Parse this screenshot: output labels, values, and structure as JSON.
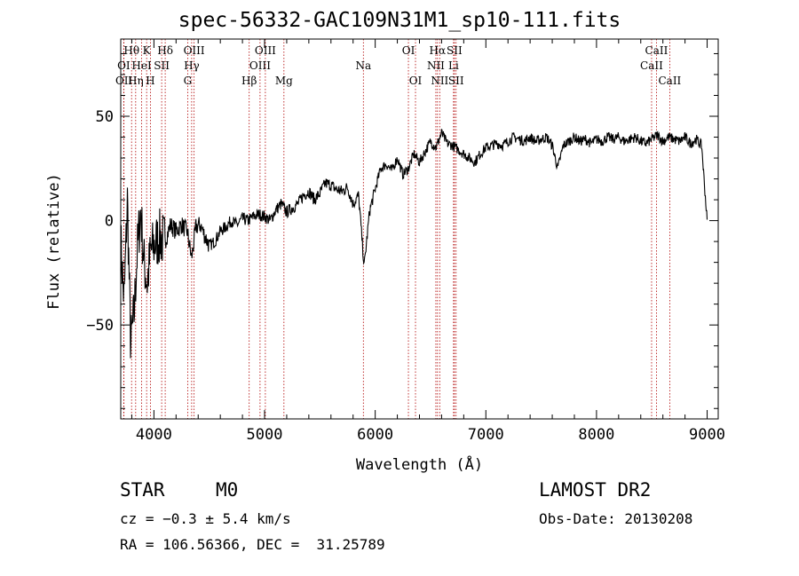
{
  "chart_data": {
    "type": "line",
    "title": "spec-56332-GAC109N31M1_sp10-111.fits",
    "xlabel": "Wavelength (Å)",
    "ylabel": "Flux (relative)",
    "xlim": [
      3700,
      9100
    ],
    "ylim": [
      -95,
      87
    ],
    "x_ticks": [
      4000,
      5000,
      6000,
      7000,
      8000,
      9000
    ],
    "y_ticks": [
      -50,
      0,
      50
    ],
    "grid": false,
    "series": [
      {
        "x": [
          3700,
          3730,
          3760,
          3790,
          3820,
          3850,
          3880,
          3910,
          3940,
          3970,
          4000,
          4050,
          4100,
          4150,
          4200,
          4250,
          4300,
          4340,
          4380,
          4420,
          4450,
          4500,
          4550,
          4600,
          4650,
          4700,
          4750,
          4800,
          4850,
          4900,
          4950,
          5000,
          5050,
          5100,
          5150,
          5200,
          5250,
          5300,
          5350,
          5400,
          5450,
          5500,
          5550,
          5600,
          5650,
          5700,
          5750,
          5800,
          5850,
          5900,
          5950,
          6000,
          6050,
          6100,
          6150,
          6200,
          6250,
          6300,
          6350,
          6400,
          6450,
          6500,
          6550,
          6600,
          6650,
          6700,
          6750,
          6800,
          6850,
          6900,
          6950,
          7000,
          7050,
          7100,
          7150,
          7200,
          7250,
          7300,
          7350,
          7400,
          7450,
          7500,
          7550,
          7600,
          7650,
          7700,
          7750,
          7800,
          7850,
          7900,
          7950,
          8000,
          8050,
          8100,
          8150,
          8200,
          8250,
          8300,
          8350,
          8400,
          8450,
          8500,
          8550,
          8600,
          8650,
          8700,
          8750,
          8800,
          8850,
          8900,
          8950,
          9000
        ],
        "y": [
          -10,
          -40,
          10,
          -60,
          -45,
          -15,
          5,
          -20,
          -30,
          -15,
          -12,
          -8,
          -10,
          -2,
          -5,
          -2,
          -5,
          -18,
          -3,
          -2,
          -6,
          -12,
          -10,
          -5,
          -3,
          0,
          -2,
          1,
          0,
          2,
          3,
          2,
          0,
          5,
          8,
          4,
          6,
          8,
          12,
          14,
          10,
          13,
          18,
          17,
          15,
          14,
          16,
          8,
          12,
          -22,
          5,
          15,
          25,
          27,
          24,
          30,
          22,
          25,
          32,
          28,
          33,
          38,
          35,
          42,
          37,
          36,
          34,
          32,
          30,
          28,
          32,
          35,
          36,
          37,
          36,
          38,
          40,
          39,
          38,
          40,
          38,
          39,
          40,
          36,
          25,
          36,
          38,
          40,
          38,
          39,
          37,
          39,
          38,
          40,
          39,
          40,
          38,
          39,
          40,
          38,
          37,
          39,
          41,
          38,
          40,
          39,
          38,
          40,
          37,
          39,
          36,
          0
        ]
      }
    ],
    "spectral_lines": [
      {
        "label": "Hθ",
        "x": 3798,
        "row": 0
      },
      {
        "label": "OI",
        "x": 3727,
        "row": 1
      },
      {
        "label": "OII",
        "x": 3729,
        "row": 2
      },
      {
        "label": "K",
        "x": 3934,
        "row": 0
      },
      {
        "label": "HeI",
        "x": 3889,
        "row": 1
      },
      {
        "label": "Hη",
        "x": 3835,
        "row": 2
      },
      {
        "label": "Hδ",
        "x": 4102,
        "row": 0
      },
      {
        "label": "SII",
        "x": 4070,
        "row": 1
      },
      {
        "label": "H",
        "x": 3968,
        "row": 2
      },
      {
        "label": "OIII",
        "x": 4363,
        "row": 0
      },
      {
        "label": "Hγ",
        "x": 4341,
        "row": 1
      },
      {
        "label": "G",
        "x": 4305,
        "row": 2
      },
      {
        "label": "OIII",
        "x": 5007,
        "row": 0
      },
      {
        "label": "OIII",
        "x": 4959,
        "row": 1
      },
      {
        "label": "Hβ",
        "x": 4861,
        "row": 2
      },
      {
        "label": "Mg",
        "x": 5175,
        "row": 2
      },
      {
        "label": "Na",
        "x": 5893,
        "row": 1
      },
      {
        "label": "OI",
        "x": 6300,
        "row": 0
      },
      {
        "label": "OI",
        "x": 6364,
        "row": 2
      },
      {
        "label": "Hα",
        "x": 6563,
        "row": 0
      },
      {
        "label": "NII",
        "x": 6548,
        "row": 1
      },
      {
        "label": "NII",
        "x": 6583,
        "row": 2
      },
      {
        "label": "SII",
        "x": 6716,
        "row": 0
      },
      {
        "label": "Li",
        "x": 6708,
        "row": 1
      },
      {
        "label": "SII",
        "x": 6731,
        "row": 2
      },
      {
        "label": "CaII",
        "x": 8542,
        "row": 0
      },
      {
        "label": "CaII",
        "x": 8498,
        "row": 1
      },
      {
        "label": "CaII",
        "x": 8662,
        "row": 2
      }
    ]
  },
  "footer": {
    "class_label": "STAR",
    "subclass": "M0",
    "survey": "LAMOST DR2",
    "cz": "cz = −0.3 ± 5.4 km/s",
    "obs_date": "Obs-Date: 20130208",
    "coords": "RA = 106.56366, DEC =  31.25789"
  }
}
